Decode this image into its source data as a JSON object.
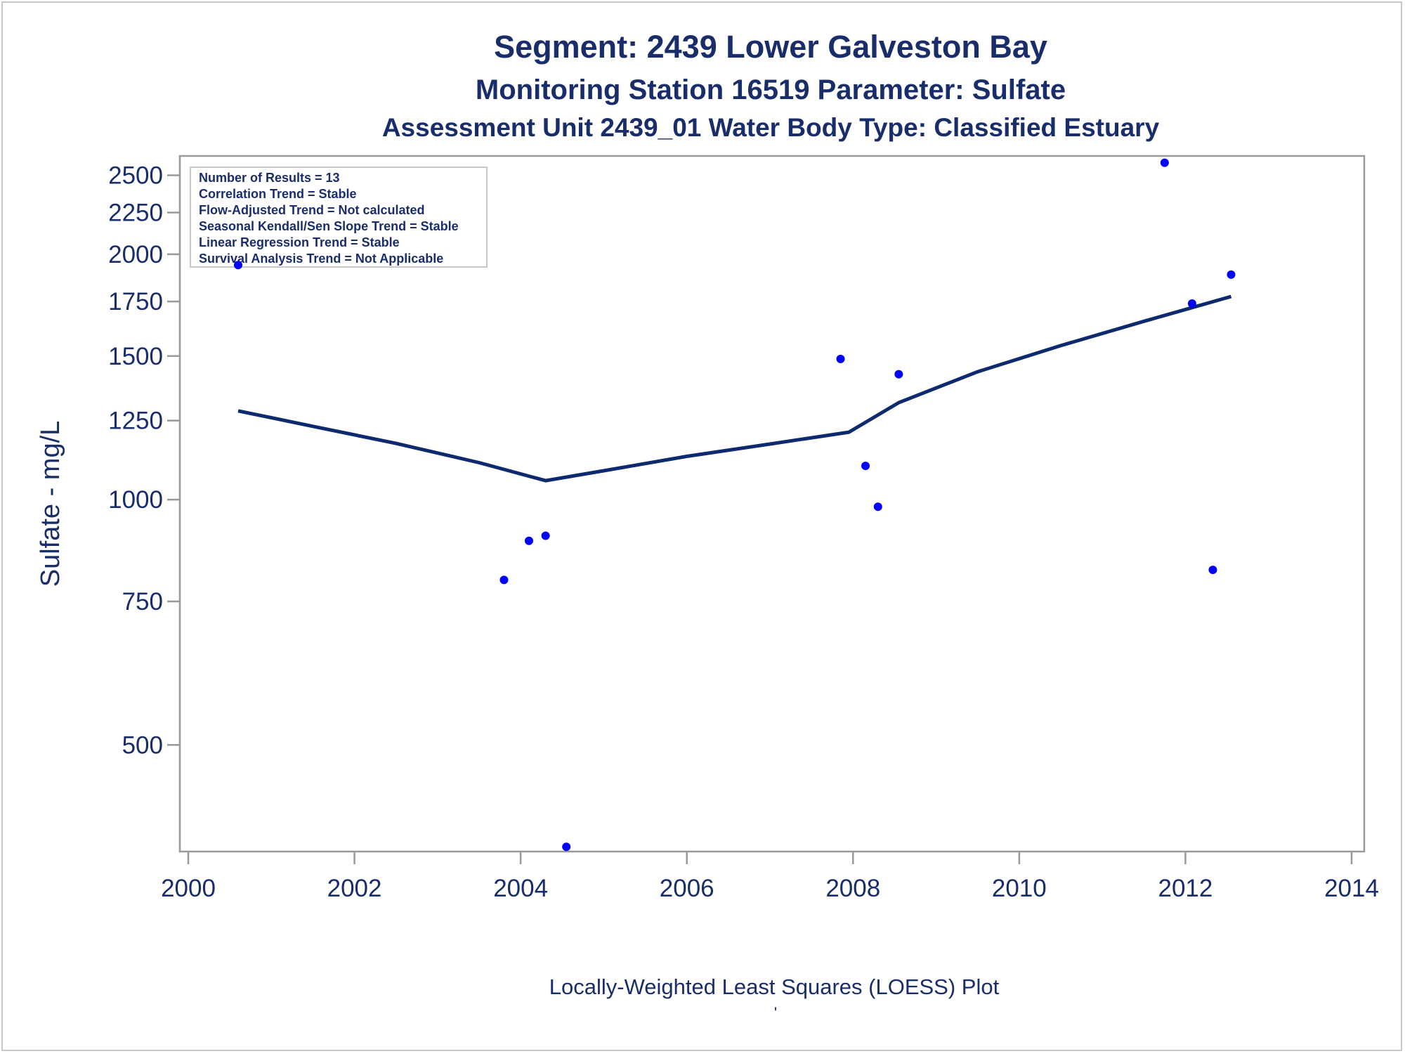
{
  "titles": {
    "line1": "Segment: 2439  Lower Galveston Bay",
    "line2": "Monitoring Station 16519 Parameter: Sulfate",
    "line3": "Assessment Unit 2439_01   Water Body Type: Classified Estuary"
  },
  "inset_box": [
    "Number of Results = 13",
    "Correlation Trend = Stable",
    "Flow-Adjusted Trend = Not calculated",
    "Seasonal Kendall/Sen Slope Trend = Stable",
    "Linear Regression Trend = Stable",
    "Survival Analysis Trend = Not Applicable"
  ],
  "footer": {
    "caption": "Locally-Weighted Least Squares (LOESS) Plot",
    "mark": "'"
  },
  "colors": {
    "text": "#1a2d6b",
    "points": "#0000ff",
    "loess_line": "#0d2a6e",
    "axis": "#999999"
  },
  "chart_data": {
    "type": "scatter",
    "ylabel": "Sulfate - mg/L",
    "xlabel": "",
    "y_scale": "log",
    "xlim": [
      2000,
      2014
    ],
    "ylim": [
      370,
      2640
    ],
    "x_ticks": [
      2000,
      2002,
      2004,
      2006,
      2008,
      2010,
      2012,
      2014
    ],
    "y_ticks": [
      500,
      750,
      1000,
      1250,
      1500,
      1750,
      2000,
      2250,
      2500
    ],
    "grid": false,
    "points": [
      {
        "x": 2000.6,
        "y": 1940
      },
      {
        "x": 2003.8,
        "y": 797
      },
      {
        "x": 2004.1,
        "y": 890
      },
      {
        "x": 2004.3,
        "y": 903
      },
      {
        "x": 2004.55,
        "y": 375
      },
      {
        "x": 2007.85,
        "y": 1488
      },
      {
        "x": 2008.15,
        "y": 1100
      },
      {
        "x": 2008.3,
        "y": 980
      },
      {
        "x": 2008.55,
        "y": 1425
      },
      {
        "x": 2011.75,
        "y": 2590
      },
      {
        "x": 2012.08,
        "y": 1740
      },
      {
        "x": 2012.33,
        "y": 820
      },
      {
        "x": 2012.55,
        "y": 1888
      }
    ],
    "loess": [
      {
        "x": 2000.6,
        "y": 1285
      },
      {
        "x": 2001.5,
        "y": 1230
      },
      {
        "x": 2002.5,
        "y": 1172
      },
      {
        "x": 2003.5,
        "y": 1110
      },
      {
        "x": 2004.3,
        "y": 1055
      },
      {
        "x": 2005.0,
        "y": 1085
      },
      {
        "x": 2006.0,
        "y": 1130
      },
      {
        "x": 2007.0,
        "y": 1170
      },
      {
        "x": 2007.95,
        "y": 1210
      },
      {
        "x": 2008.55,
        "y": 1315
      },
      {
        "x": 2009.5,
        "y": 1435
      },
      {
        "x": 2010.5,
        "y": 1545
      },
      {
        "x": 2011.5,
        "y": 1655
      },
      {
        "x": 2012.55,
        "y": 1775
      }
    ]
  }
}
